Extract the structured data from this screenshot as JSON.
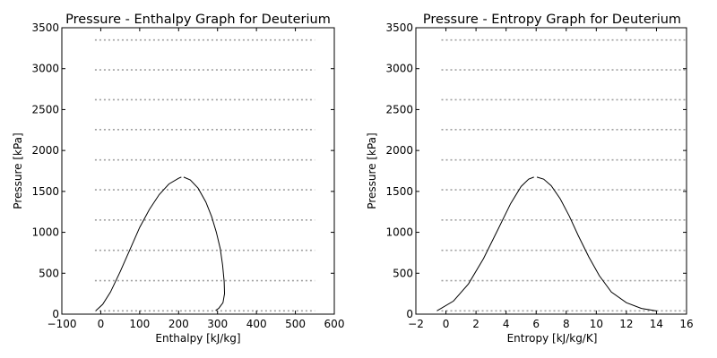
{
  "chart_data": [
    {
      "type": "line",
      "title": "Pressure - Enthalpy Graph for Deuterium",
      "xlabel": "Enthalpy [kJ/kg]",
      "ylabel": "Pressure [kPa]",
      "xlim": [
        -100,
        600
      ],
      "ylim": [
        0,
        3500
      ],
      "xticks": [
        -100,
        0,
        100,
        200,
        300,
        400,
        500,
        600
      ],
      "xtick_labels": [
        "−100",
        "0",
        "100",
        "200",
        "300",
        "400",
        "500",
        "600"
      ],
      "yticks": [
        0,
        500,
        1000,
        1500,
        2000,
        2500,
        3000,
        3500
      ],
      "grid": false,
      "isobars": {
        "x_range": [
          -15,
          550
        ],
        "pressures": [
          40,
          410,
          780,
          1150,
          1520,
          1885,
          2255,
          2620,
          2985,
          3350
        ]
      },
      "series": [
        {
          "x": [
            -12,
            5,
            25,
            50,
            75,
            100,
            125,
            150,
            175,
            200,
            207
          ],
          "y": [
            45,
            120,
            270,
            520,
            790,
            1060,
            1280,
            1460,
            1590,
            1660,
            1675
          ]
        },
        {
          "x": [
            213,
            230,
            250,
            270,
            285,
            297,
            307,
            313,
            317,
            318,
            314,
            303,
            295
          ],
          "y": [
            1675,
            1640,
            1540,
            1370,
            1190,
            1000,
            800,
            600,
            400,
            250,
            140,
            70,
            45
          ]
        }
      ]
    },
    {
      "type": "line",
      "title": "Pressure - Entropy Graph for Deuterium",
      "xlabel": "Entropy [kJ/kg/K]",
      "ylabel": "Pressure [kPa]",
      "xlim": [
        -2,
        16
      ],
      "ylim": [
        0,
        3500
      ],
      "xticks": [
        -2,
        0,
        2,
        4,
        6,
        8,
        10,
        12,
        14,
        16
      ],
      "xtick_labels": [
        "−2",
        "0",
        "2",
        "4",
        "6",
        "8",
        "10",
        "12",
        "14",
        "16"
      ],
      "yticks": [
        0,
        500,
        1000,
        1500,
        2000,
        2500,
        3000,
        3500
      ],
      "grid": false,
      "isobars": {
        "x_range": [
          -0.3,
          16
        ],
        "pressures": [
          40,
          410,
          780,
          1150,
          1520,
          1885,
          2255,
          2620,
          2985,
          3350
        ]
      },
      "series": [
        {
          "x": [
            -0.6,
            0.5,
            1.5,
            2.5,
            3.5,
            4.3,
            5.0,
            5.5,
            5.85
          ],
          "y": [
            40,
            160,
            370,
            680,
            1050,
            1350,
            1560,
            1650,
            1675
          ]
        },
        {
          "x": [
            6.05,
            6.5,
            7.0,
            7.6,
            8.2,
            8.8,
            9.5,
            10.2,
            11.0,
            12.0,
            13.0,
            14.0
          ],
          "y": [
            1675,
            1650,
            1570,
            1410,
            1200,
            960,
            700,
            470,
            270,
            140,
            70,
            40
          ]
        }
      ]
    }
  ],
  "style": {
    "line_color": "#000000",
    "isobar_color": "#a0a0a0",
    "background": "#ffffff"
  }
}
